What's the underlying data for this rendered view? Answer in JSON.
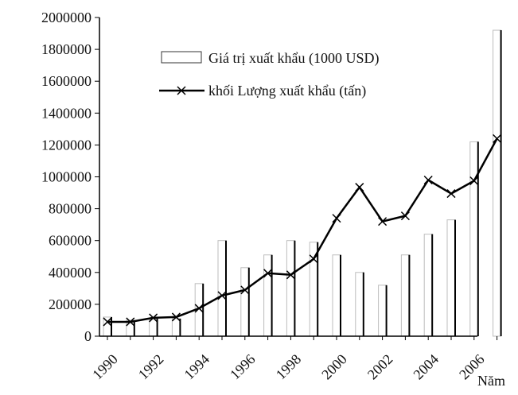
{
  "chart_data": {
    "type": "bar",
    "title": "",
    "xlabel": "Năm",
    "ylabel": "",
    "ylim": [
      0,
      2000000
    ],
    "yticks": [
      0,
      200000,
      400000,
      600000,
      800000,
      1000000,
      1200000,
      1400000,
      1600000,
      1800000,
      2000000
    ],
    "x": [
      1990,
      1991,
      1992,
      1993,
      1994,
      1995,
      1996,
      1997,
      1998,
      1999,
      2000,
      2001,
      2002,
      2003,
      2004,
      2005,
      2006,
      2007
    ],
    "xtick_labels": [
      "1990",
      "1992",
      "1994",
      "1996",
      "1998",
      "2000",
      "2002",
      "2004",
      "2006"
    ],
    "grid": false,
    "legend_position": "top-center",
    "series": [
      {
        "name": "Giá trị xuất khẩu (1000 USD)",
        "type": "bar",
        "values": [
          120000,
          100000,
          110000,
          110000,
          330000,
          600000,
          430000,
          510000,
          600000,
          590000,
          510000,
          400000,
          320000,
          510000,
          640000,
          730000,
          1220000,
          1920000
        ]
      },
      {
        "name": "khối Lượng xuất khẩu (tấn)",
        "type": "line",
        "marker": "x",
        "values": [
          90000,
          90000,
          115000,
          120000,
          175000,
          255000,
          290000,
          395000,
          385000,
          485000,
          740000,
          935000,
          720000,
          755000,
          980000,
          895000,
          975000,
          1240000
        ]
      }
    ]
  }
}
